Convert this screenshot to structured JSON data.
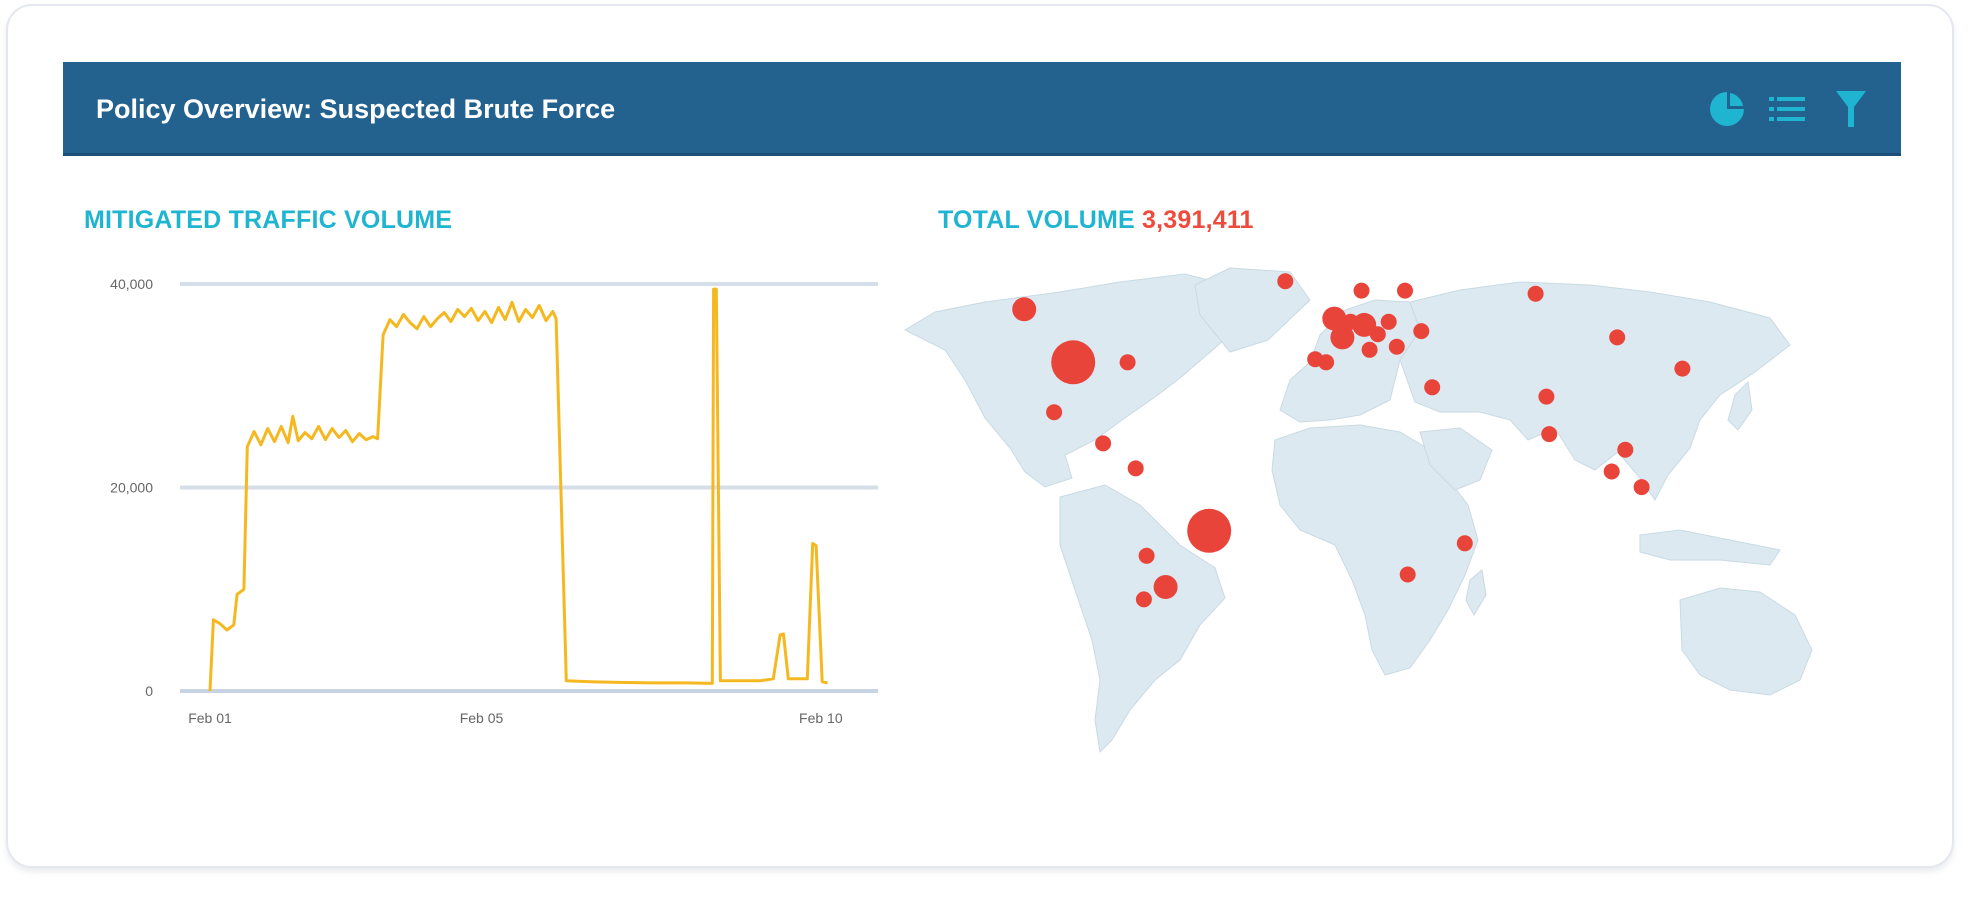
{
  "panel": {
    "title": "Policy Overview: Suspected Brute Force",
    "icons": [
      "pie-chart-icon",
      "list-icon",
      "filter-icon"
    ]
  },
  "traffic": {
    "heading": "MITIGATED TRAFFIC VOLUME"
  },
  "map": {
    "heading_label": "TOTAL VOLUME",
    "heading_value": "3,391,411",
    "land_color": "#dce9f0",
    "marker_color": "#e9443a",
    "hotspots": [
      {
        "region": "Western Canada",
        "lon": -115,
        "lat": 56,
        "size": "medium"
      },
      {
        "region": "United States",
        "lon": -97,
        "lat": 39,
        "size": "large"
      },
      {
        "region": "US East Coast",
        "lon": -77,
        "lat": 39,
        "size": "small"
      },
      {
        "region": "Mexico",
        "lon": -104,
        "lat": 23,
        "size": "small"
      },
      {
        "region": "Central America",
        "lon": -86,
        "lat": 13,
        "size": "small"
      },
      {
        "region": "Colombia",
        "lon": -74,
        "lat": 5,
        "size": "small"
      },
      {
        "region": "Brazil",
        "lon": -47,
        "lat": -15,
        "size": "large"
      },
      {
        "region": "Northern Chile",
        "lon": -70,
        "lat": -23,
        "size": "small"
      },
      {
        "region": "Argentina",
        "lon": -63,
        "lat": -33,
        "size": "medium"
      },
      {
        "region": "Central Chile",
        "lon": -71,
        "lat": -37,
        "size": "small"
      },
      {
        "region": "Iceland",
        "lon": -19,
        "lat": 65,
        "size": "small"
      },
      {
        "region": "Norway",
        "lon": 9,
        "lat": 62,
        "size": "small"
      },
      {
        "region": "Finland",
        "lon": 25,
        "lat": 62,
        "size": "small"
      },
      {
        "region": "United Kingdom",
        "lon": -1,
        "lat": 53,
        "size": "medium"
      },
      {
        "region": "Netherlands",
        "lon": 5,
        "lat": 52,
        "size": "small"
      },
      {
        "region": "Germany",
        "lon": 10,
        "lat": 51,
        "size": "medium"
      },
      {
        "region": "Poland",
        "lon": 19,
        "lat": 52,
        "size": "small"
      },
      {
        "region": "France",
        "lon": 2,
        "lat": 47,
        "size": "medium"
      },
      {
        "region": "Austria",
        "lon": 15,
        "lat": 48,
        "size": "small"
      },
      {
        "region": "Ukraine",
        "lon": 31,
        "lat": 49,
        "size": "small"
      },
      {
        "region": "Italy",
        "lon": 12,
        "lat": 43,
        "size": "small"
      },
      {
        "region": "Balkans",
        "lon": 22,
        "lat": 44,
        "size": "small"
      },
      {
        "region": "Portugal",
        "lon": -8,
        "lat": 40,
        "size": "small"
      },
      {
        "region": "Spain",
        "lon": -4,
        "lat": 39,
        "size": "small"
      },
      {
        "region": "Israel",
        "lon": 35,
        "lat": 31,
        "size": "small"
      },
      {
        "region": "Western Siberia",
        "lon": 73,
        "lat": 61,
        "size": "small"
      },
      {
        "region": "Mongolia",
        "lon": 103,
        "lat": 47,
        "size": "small"
      },
      {
        "region": "Korea",
        "lon": 127,
        "lat": 37,
        "size": "small"
      },
      {
        "region": "Northern India",
        "lon": 77,
        "lat": 28,
        "size": "small"
      },
      {
        "region": "Southern India",
        "lon": 78,
        "lat": 16,
        "size": "small"
      },
      {
        "region": "Vietnam",
        "lon": 106,
        "lat": 11,
        "size": "small"
      },
      {
        "region": "Malaysia",
        "lon": 101,
        "lat": 4,
        "size": "small"
      },
      {
        "region": "Borneo",
        "lon": 112,
        "lat": -1,
        "size": "small"
      },
      {
        "region": "Madagascar",
        "lon": 47,
        "lat": -19,
        "size": "small"
      },
      {
        "region": "South Africa",
        "lon": 26,
        "lat": -29,
        "size": "small"
      }
    ]
  },
  "chart_data": {
    "type": "line",
    "title": "MITIGATED TRAFFIC VOLUME",
    "xlabel": "",
    "ylabel": "",
    "x_ticks": [
      "Feb 01",
      "Feb 05",
      "Feb 10"
    ],
    "y_ticks": [
      "0",
      "20,000",
      "40,000"
    ],
    "ylim": [
      0,
      40000
    ],
    "xlim": [
      0,
      9.4
    ],
    "x_unit": "days since Feb 01",
    "grid": true,
    "legend": "none",
    "series": [
      {
        "color": "#f5b820",
        "points": [
          [
            0.0,
            0
          ],
          [
            0.05,
            7000
          ],
          [
            0.15,
            6600
          ],
          [
            0.25,
            6000
          ],
          [
            0.35,
            6500
          ],
          [
            0.4,
            9500
          ],
          [
            0.5,
            10000
          ],
          [
            0.55,
            24000
          ],
          [
            0.65,
            25500
          ],
          [
            0.75,
            24200
          ],
          [
            0.85,
            25800
          ],
          [
            0.95,
            24500
          ],
          [
            1.05,
            26000
          ],
          [
            1.15,
            24400
          ],
          [
            1.22,
            27000
          ],
          [
            1.3,
            24600
          ],
          [
            1.4,
            25400
          ],
          [
            1.5,
            24800
          ],
          [
            1.6,
            26000
          ],
          [
            1.7,
            24700
          ],
          [
            1.8,
            25800
          ],
          [
            1.9,
            24900
          ],
          [
            2.0,
            25600
          ],
          [
            2.1,
            24500
          ],
          [
            2.2,
            25300
          ],
          [
            2.3,
            24700
          ],
          [
            2.4,
            25000
          ],
          [
            2.47,
            24800
          ],
          [
            2.55,
            35000
          ],
          [
            2.65,
            36500
          ],
          [
            2.75,
            35800
          ],
          [
            2.85,
            37000
          ],
          [
            2.95,
            36200
          ],
          [
            3.05,
            35600
          ],
          [
            3.15,
            36800
          ],
          [
            3.25,
            35800
          ],
          [
            3.35,
            36600
          ],
          [
            3.45,
            37200
          ],
          [
            3.55,
            36300
          ],
          [
            3.65,
            37500
          ],
          [
            3.75,
            36800
          ],
          [
            3.85,
            37600
          ],
          [
            3.95,
            36400
          ],
          [
            4.05,
            37300
          ],
          [
            4.15,
            36200
          ],
          [
            4.25,
            37700
          ],
          [
            4.35,
            36500
          ],
          [
            4.45,
            38200
          ],
          [
            4.55,
            36300
          ],
          [
            4.65,
            37500
          ],
          [
            4.75,
            36700
          ],
          [
            4.85,
            37900
          ],
          [
            4.95,
            36400
          ],
          [
            5.05,
            37300
          ],
          [
            5.1,
            36600
          ],
          [
            5.25,
            1000
          ],
          [
            5.6,
            900
          ],
          [
            6.0,
            850
          ],
          [
            6.5,
            800
          ],
          [
            7.0,
            800
          ],
          [
            7.4,
            750
          ],
          [
            7.42,
            39500
          ],
          [
            7.46,
            39500
          ],
          [
            7.52,
            1000
          ],
          [
            8.1,
            1000
          ],
          [
            8.3,
            1200
          ],
          [
            8.4,
            5500
          ],
          [
            8.45,
            5600
          ],
          [
            8.52,
            1200
          ],
          [
            8.8,
            1200
          ],
          [
            8.88,
            14500
          ],
          [
            8.93,
            14300
          ],
          [
            9.02,
            900
          ],
          [
            9.1,
            800
          ]
        ]
      }
    ]
  }
}
